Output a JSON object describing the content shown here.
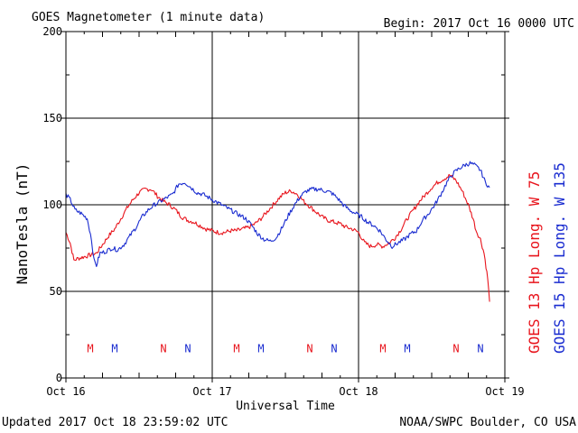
{
  "header": {
    "title": "GOES Magnetometer (1 minute data)",
    "begin": "Begin:  2017 Oct 16 0000 UTC"
  },
  "footer": {
    "updated": "Updated 2017 Oct 18 23:59:02 UTC",
    "credit": "NOAA/SWPC Boulder, CO USA"
  },
  "colors": {
    "goes13": "#e8141c",
    "goes15": "#1a2cd0",
    "grid": "#000000"
  },
  "chart_data": {
    "type": "line",
    "ylabel": "NanoTesla (nT)",
    "xlabel": "Universal Time",
    "ylim": [
      0,
      200
    ],
    "xlim": [
      0,
      72
    ],
    "x_unit": "hours since 2017 Oct 16 0000 UTC",
    "yticks": [
      0,
      50,
      100,
      150,
      200
    ],
    "xticks": [
      {
        "x": 0,
        "label": "Oct 16"
      },
      {
        "x": 24,
        "label": "Oct 17"
      },
      {
        "x": 48,
        "label": "Oct 18"
      },
      {
        "x": 72,
        "label": "Oct 19"
      }
    ],
    "grid": true,
    "series": [
      {
        "name": "GOES 13 Hp  Long. W 75",
        "color": "#e8141c",
        "points": [
          [
            0,
            84
          ],
          [
            0.7,
            78
          ],
          [
            1.3,
            68
          ],
          [
            2,
            69
          ],
          [
            3,
            70
          ],
          [
            4,
            71
          ],
          [
            5,
            72
          ],
          [
            6,
            77
          ],
          [
            7,
            82
          ],
          [
            8,
            86
          ],
          [
            9,
            92
          ],
          [
            10,
            98
          ],
          [
            11,
            103
          ],
          [
            12,
            107
          ],
          [
            13,
            109
          ],
          [
            14,
            109
          ],
          [
            15,
            105
          ],
          [
            16,
            102
          ],
          [
            17,
            100
          ],
          [
            18,
            97
          ],
          [
            19,
            93
          ],
          [
            20,
            91
          ],
          [
            21,
            90
          ],
          [
            22,
            88
          ],
          [
            23,
            86
          ],
          [
            24,
            85
          ],
          [
            25,
            84
          ],
          [
            26,
            84
          ],
          [
            27,
            85
          ],
          [
            28,
            85
          ],
          [
            29,
            86
          ],
          [
            30,
            87
          ],
          [
            31,
            89
          ],
          [
            32,
            92
          ],
          [
            33,
            96
          ],
          [
            34,
            100
          ],
          [
            35,
            104
          ],
          [
            36,
            107
          ],
          [
            37,
            108
          ],
          [
            38,
            106
          ],
          [
            39,
            102
          ],
          [
            40,
            99
          ],
          [
            41,
            96
          ],
          [
            42,
            93
          ],
          [
            43,
            91
          ],
          [
            44,
            90
          ],
          [
            45,
            89
          ],
          [
            46,
            87
          ],
          [
            47,
            86
          ],
          [
            48,
            84
          ],
          [
            49,
            78
          ],
          [
            50,
            76
          ],
          [
            51,
            77
          ],
          [
            52,
            76
          ],
          [
            53,
            78
          ],
          [
            54,
            81
          ],
          [
            55,
            86
          ],
          [
            56,
            92
          ],
          [
            57,
            97
          ],
          [
            58,
            102
          ],
          [
            59,
            106
          ],
          [
            60,
            110
          ],
          [
            61,
            113
          ],
          [
            62,
            115
          ],
          [
            63,
            117
          ],
          [
            64,
            114
          ],
          [
            65,
            108
          ],
          [
            66,
            100
          ],
          [
            66.8,
            92
          ],
          [
            67.3,
            85
          ],
          [
            68,
            80
          ],
          [
            68.6,
            72
          ],
          [
            69.2,
            57
          ],
          [
            69.5,
            44
          ]
        ]
      },
      {
        "name": "GOES 15 Hp  Long. W 135",
        "color": "#1a2cd0",
        "points": [
          [
            0,
            106
          ],
          [
            0.7,
            103
          ],
          [
            1.5,
            97
          ],
          [
            2.5,
            95
          ],
          [
            3.5,
            92
          ],
          [
            4.2,
            80
          ],
          [
            4.6,
            68
          ],
          [
            5,
            65
          ],
          [
            5.6,
            72
          ],
          [
            6.5,
            73
          ],
          [
            7.5,
            75
          ],
          [
            8.5,
            74
          ],
          [
            9.5,
            77
          ],
          [
            10.5,
            82
          ],
          [
            11.5,
            87
          ],
          [
            12.5,
            93
          ],
          [
            13.5,
            97
          ],
          [
            14.5,
            100
          ],
          [
            15.5,
            102
          ],
          [
            16.5,
            104
          ],
          [
            17.5,
            106
          ],
          [
            18.5,
            112
          ],
          [
            19.5,
            113
          ],
          [
            20.5,
            110
          ],
          [
            21.5,
            107
          ],
          [
            22.5,
            106
          ],
          [
            23.5,
            104
          ],
          [
            24.5,
            102
          ],
          [
            25.5,
            100
          ],
          [
            26.5,
            98
          ],
          [
            27.5,
            96
          ],
          [
            28.5,
            94
          ],
          [
            29.5,
            92
          ],
          [
            30.5,
            88
          ],
          [
            31.5,
            83
          ],
          [
            32.5,
            80
          ],
          [
            33.5,
            79
          ],
          [
            34.5,
            81
          ],
          [
            35.5,
            87
          ],
          [
            36.5,
            94
          ],
          [
            37.5,
            100
          ],
          [
            38.5,
            105
          ],
          [
            39.5,
            108
          ],
          [
            40.5,
            109
          ],
          [
            41.5,
            109
          ],
          [
            42.5,
            108
          ],
          [
            43.5,
            107
          ],
          [
            44.5,
            104
          ],
          [
            45.5,
            100
          ],
          [
            46.5,
            97
          ],
          [
            47.5,
            95
          ],
          [
            48.5,
            93
          ],
          [
            49.5,
            90
          ],
          [
            50.5,
            88
          ],
          [
            51.5,
            85
          ],
          [
            52.5,
            80
          ],
          [
            53.5,
            76
          ],
          [
            54.5,
            78
          ],
          [
            55.5,
            80
          ],
          [
            56.5,
            83
          ],
          [
            57.5,
            85
          ],
          [
            58.5,
            91
          ],
          [
            59.5,
            95
          ],
          [
            60.5,
            100
          ],
          [
            61.5,
            106
          ],
          [
            62.5,
            113
          ],
          [
            63.5,
            118
          ],
          [
            64.5,
            121
          ],
          [
            65.5,
            123
          ],
          [
            66.3,
            124
          ],
          [
            67,
            123
          ],
          [
            68,
            120
          ],
          [
            68.8,
            113
          ],
          [
            69.5,
            110
          ]
        ]
      }
    ],
    "markers": [
      {
        "day": "Oct 16",
        "items": [
          {
            "label": "M",
            "series": "GOES 13 Hp  Long. W 75",
            "x": 4
          },
          {
            "label": "M",
            "series": "GOES 15 Hp  Long. W 135",
            "x": 8
          },
          {
            "label": "N",
            "series": "GOES 13 Hp  Long. W 75",
            "x": 16
          },
          {
            "label": "N",
            "series": "GOES 15 Hp  Long. W 135",
            "x": 20
          }
        ]
      },
      {
        "day": "Oct 17",
        "items": [
          {
            "label": "M",
            "series": "GOES 13 Hp  Long. W 75",
            "x": 28
          },
          {
            "label": "M",
            "series": "GOES 15 Hp  Long. W 135",
            "x": 32
          },
          {
            "label": "N",
            "series": "GOES 13 Hp  Long. W 75",
            "x": 40
          },
          {
            "label": "N",
            "series": "GOES 15 Hp  Long. W 135",
            "x": 44
          }
        ]
      },
      {
        "day": "Oct 18",
        "items": [
          {
            "label": "M",
            "series": "GOES 13 Hp  Long. W 75",
            "x": 52
          },
          {
            "label": "M",
            "series": "GOES 15 Hp  Long. W 135",
            "x": 56
          },
          {
            "label": "N",
            "series": "GOES 13 Hp  Long. W 75",
            "x": 64
          },
          {
            "label": "N",
            "series": "GOES 15 Hp  Long. W 135",
            "x": 68
          }
        ]
      }
    ],
    "marker_y": 17
  }
}
